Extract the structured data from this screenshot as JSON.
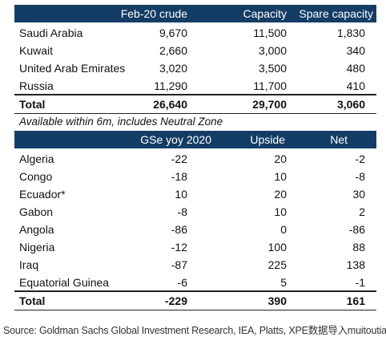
{
  "table1": {
    "headers": [
      "Feb-20 crude",
      "Capacity",
      "Spare capacity"
    ],
    "rows": [
      {
        "name": "Saudi Arabia",
        "crude": "9,670",
        "capacity": "11,500",
        "spare": "1,830"
      },
      {
        "name": "Kuwait",
        "crude": "2,660",
        "capacity": "3,000",
        "spare": "340"
      },
      {
        "name": "United Arab Emirates",
        "crude": "3,020",
        "capacity": "3,500",
        "spare": "480"
      },
      {
        "name": "Russia",
        "crude": "11,290",
        "capacity": "11,700",
        "spare": "410"
      }
    ],
    "total": {
      "name": "Total",
      "crude": "26,640",
      "capacity": "29,700",
      "spare": "3,060"
    }
  },
  "note": "Available within 6m, includes Neutral Zone",
  "table2": {
    "headers": [
      "GSe yoy 2020",
      "Upside",
      "Net"
    ],
    "rows": [
      {
        "name": "Algeria",
        "gse": "-22",
        "upside": "20",
        "net": "-2"
      },
      {
        "name": "Congo",
        "gse": "-18",
        "upside": "10",
        "net": "-8"
      },
      {
        "name": "Ecuador*",
        "gse": "10",
        "upside": "20",
        "net": "30"
      },
      {
        "name": "Gabon",
        "gse": "-8",
        "upside": "10",
        "net": "2"
      },
      {
        "name": "Angola",
        "gse": "-86",
        "upside": "0",
        "net": "-86"
      },
      {
        "name": "Nigeria",
        "gse": "-12",
        "upside": "100",
        "net": "88"
      },
      {
        "name": "Iraq",
        "gse": "-87",
        "upside": "225",
        "net": "138"
      },
      {
        "name": "Equatorial Guinea",
        "gse": "-6",
        "upside": "5",
        "net": "-1"
      }
    ],
    "total": {
      "name": "Total",
      "gse": "-229",
      "upside": "390",
      "net": "161"
    }
  },
  "source": "Source: Goldman Sachs Global Investment Research, IEA, Platts, XPE数据导入muitoutiao"
}
